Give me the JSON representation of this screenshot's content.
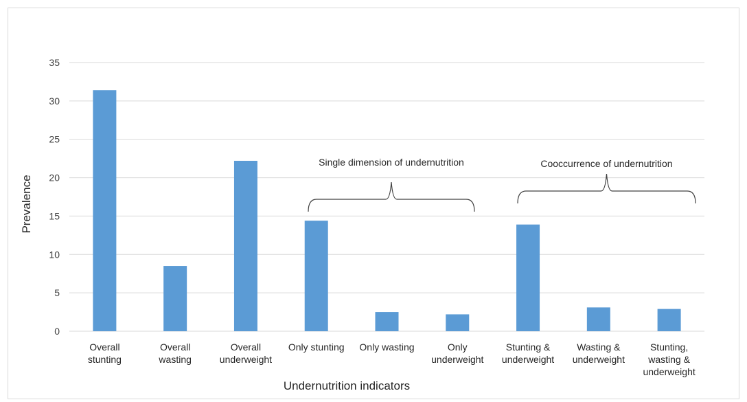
{
  "chart_data": {
    "type": "bar",
    "title": "",
    "xlabel": "Undernutrition indicators",
    "ylabel": "Prevalence",
    "ylim": [
      0,
      35
    ],
    "yticks": [
      0,
      5,
      10,
      15,
      20,
      25,
      30,
      35
    ],
    "grid": true,
    "legend": "none",
    "bar_color": "#5b9bd5",
    "categories": [
      [
        "Overall",
        "stunting"
      ],
      [
        "Overall",
        "wasting"
      ],
      [
        "Overall",
        "underweight"
      ],
      [
        "Only stunting"
      ],
      [
        "Only wasting"
      ],
      [
        "Only",
        "underweight"
      ],
      [
        "Stunting &",
        "underweight"
      ],
      [
        "Wasting &",
        "underweight"
      ],
      [
        "Stunting,",
        "wasting &",
        "underweight"
      ]
    ],
    "values": [
      31.4,
      8.5,
      22.2,
      14.4,
      2.5,
      2.2,
      13.9,
      3.1,
      2.9
    ],
    "annotations": [
      {
        "text": "Single dimension of undernutrition",
        "spans": [
          3,
          5
        ]
      },
      {
        "text": "Cooccurrence of undernutrition",
        "spans": [
          6,
          8
        ]
      }
    ]
  }
}
